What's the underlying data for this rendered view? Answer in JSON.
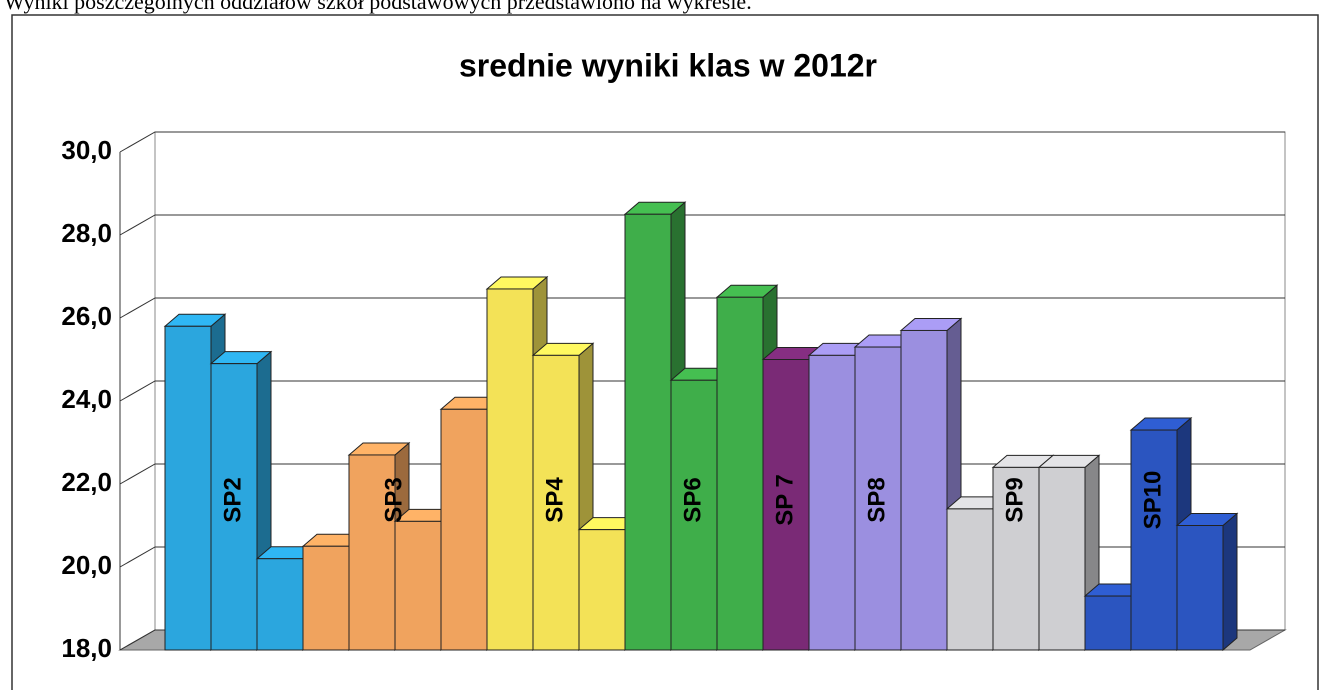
{
  "caption": "Wyniki poszczególnych oddziałów szkół podstawowych przedstawiono na wykresie.",
  "chart_data": {
    "type": "bar",
    "title": "srednie wyniki klas w 2012r",
    "series": [
      {
        "name": "SP2",
        "color": "#2ba6de",
        "values": [
          25.8,
          24.9,
          20.2
        ]
      },
      {
        "name": "SP3",
        "color": "#f0a35e",
        "values": [
          20.5,
          22.7,
          21.1,
          23.8
        ]
      },
      {
        "name": "SP4",
        "color": "#f3e257",
        "values": [
          26.7,
          25.1,
          20.9
        ]
      },
      {
        "name": "SP6",
        "color": "#3fae4a",
        "values": [
          28.5,
          24.5,
          26.5
        ]
      },
      {
        "name": "SP 7",
        "color": "#7a2a76",
        "values": [
          25.0
        ]
      },
      {
        "name": "SP8",
        "color": "#9b8fe0",
        "values": [
          25.1,
          25.3,
          25.7
        ]
      },
      {
        "name": "SP9",
        "color": "#cfcfd2",
        "values": [
          21.4,
          22.4,
          22.4
        ]
      },
      {
        "name": "SP10",
        "color": "#2b55c0",
        "values": [
          19.3,
          23.3,
          21.0
        ]
      }
    ],
    "ylim": [
      18,
      30
    ],
    "yticks": [
      {
        "value": 18,
        "label": "18,0"
      },
      {
        "value": 20,
        "label": "20,0"
      },
      {
        "value": 22,
        "label": "22,0"
      },
      {
        "value": 24,
        "label": "24,0"
      },
      {
        "value": 26,
        "label": "26,0"
      },
      {
        "value": 28,
        "label": "28,0"
      },
      {
        "value": 30,
        "label": "30,0"
      }
    ],
    "grid": true
  }
}
